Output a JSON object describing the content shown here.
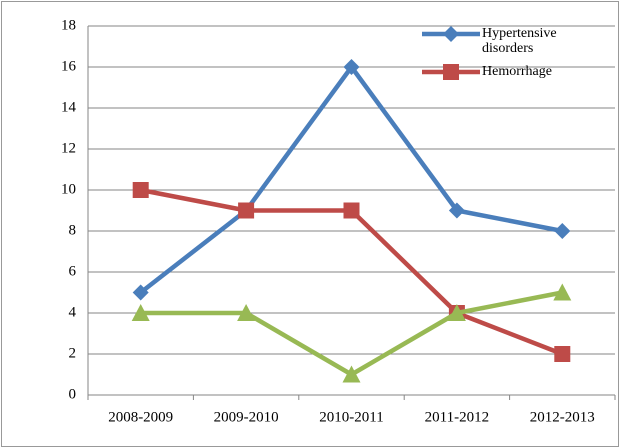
{
  "chart_data": {
    "type": "line",
    "categories": [
      "2008-2009",
      "2009-2010",
      "2010-2011",
      "2011-2012",
      "2012-2013"
    ],
    "series": [
      {
        "name": "Hypertensive disorders",
        "color": "#4a7ebb",
        "marker": "diamond",
        "values": [
          5,
          9,
          16,
          9,
          8
        ]
      },
      {
        "name": "Hemorrhage",
        "color": "#be4b48",
        "marker": "square",
        "values": [
          10,
          9,
          9,
          4,
          2
        ]
      },
      {
        "color": "#98b954",
        "marker": "triangle",
        "values": [
          4,
          4,
          1,
          4,
          5
        ]
      }
    ],
    "ylim": [
      0,
      18
    ],
    "yticks": [
      0,
      2,
      4,
      6,
      8,
      10,
      12,
      14,
      16,
      18
    ],
    "grid": true,
    "legend": "upper right"
  }
}
